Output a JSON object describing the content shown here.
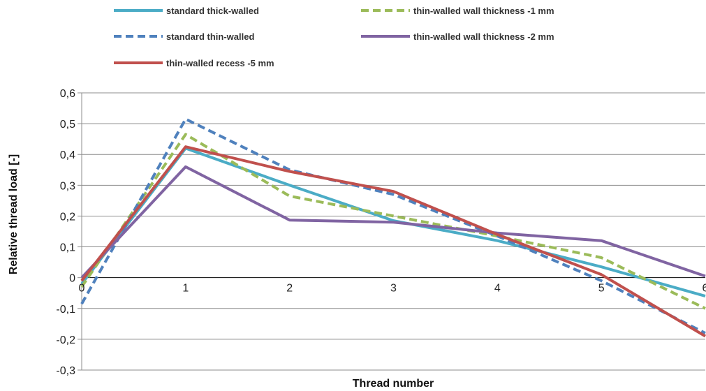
{
  "chart_data": {
    "type": "line",
    "x": [
      0,
      1,
      2,
      3,
      4,
      5,
      6
    ],
    "xticks": [
      "0",
      "1",
      "2",
      "3",
      "4",
      "5",
      "6"
    ],
    "yticks": [
      "0,6",
      "0,5",
      "0,4",
      "0,3",
      "0,2",
      "0,1",
      "0",
      "-0,1",
      "-0,2",
      "-0,3"
    ],
    "ytick_values": [
      0.6,
      0.5,
      0.4,
      0.3,
      0.2,
      0.1,
      0,
      -0.1,
      -0.2,
      -0.3
    ],
    "ylim": [
      -0.3,
      0.6
    ],
    "xlim": [
      0,
      6
    ],
    "xlabel": "Thread number",
    "ylabel": "Relative thread load [-]",
    "grid": "horizontal",
    "legend_position": "top",
    "series": [
      {
        "name": "standard thick-walled",
        "color": "#4BACC6",
        "dashed": false,
        "values": [
          -0.02,
          0.42,
          0.3,
          0.185,
          0.12,
          0.035,
          -0.06
        ]
      },
      {
        "name": "thin-walled wall thickness -1 mm",
        "color": "#9BBB59",
        "dashed": true,
        "values": [
          -0.03,
          0.465,
          0.265,
          0.2,
          0.135,
          0.065,
          -0.1
        ]
      },
      {
        "name": "standard thin-walled",
        "color": "#4F81BD",
        "dashed": true,
        "values": [
          -0.085,
          0.515,
          0.35,
          0.27,
          0.135,
          -0.01,
          -0.18
        ]
      },
      {
        "name": "thin-walled wall thickness -2 mm",
        "color": "#8064A2",
        "dashed": false,
        "values": [
          0.0,
          0.36,
          0.187,
          0.18,
          0.145,
          0.12,
          0.005
        ]
      },
      {
        "name": "thin-walled recess -5 mm",
        "color": "#C0504D",
        "dashed": false,
        "values": [
          -0.01,
          0.425,
          0.345,
          0.28,
          0.14,
          0.01,
          -0.19
        ]
      }
    ]
  }
}
